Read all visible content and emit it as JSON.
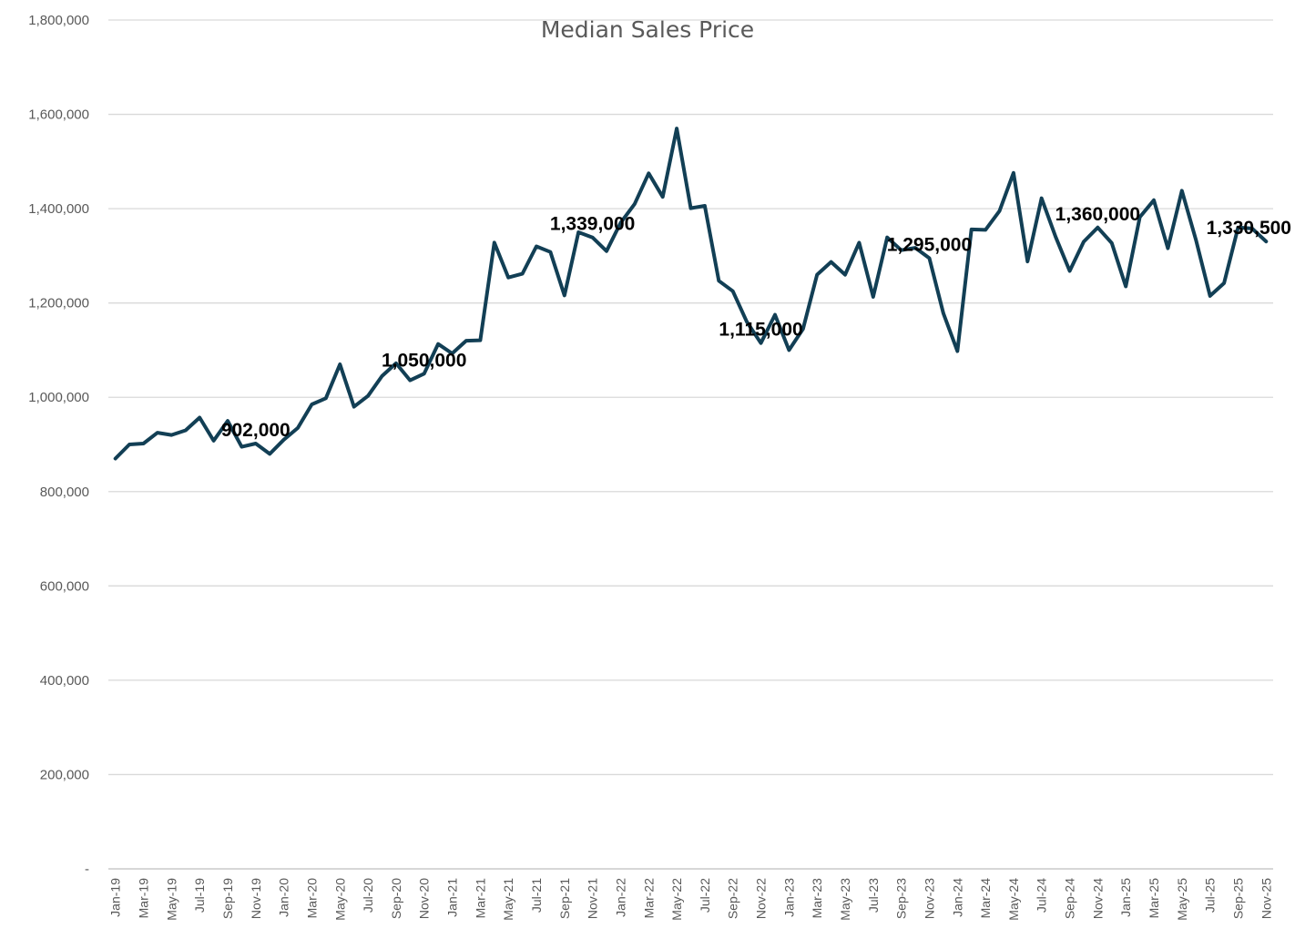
{
  "chart_data": {
    "type": "line",
    "title": "Median Sales Price",
    "xlabel": "",
    "ylabel": "",
    "ylim": [
      0,
      1800000
    ],
    "yticks": [
      0,
      200000,
      400000,
      600000,
      800000,
      1000000,
      1200000,
      1400000,
      1600000,
      1800000
    ],
    "ytick_labels": [
      "-",
      "200,000",
      "400,000",
      "600,000",
      "800,000",
      "1,000,000",
      "1,200,000",
      "1,400,000",
      "1,600,000",
      "1,800,000"
    ],
    "grid": "horizontal",
    "legend": "none",
    "line_color": "#123f55",
    "x": [
      "Jan-19",
      "Feb-19",
      "Mar-19",
      "Apr-19",
      "May-19",
      "Jun-19",
      "Jul-19",
      "Aug-19",
      "Sep-19",
      "Oct-19",
      "Nov-19",
      "Dec-19",
      "Jan-20",
      "Feb-20",
      "Mar-20",
      "Apr-20",
      "May-20",
      "Jun-20",
      "Jul-20",
      "Aug-20",
      "Sep-20",
      "Oct-20",
      "Nov-20",
      "Dec-20",
      "Jan-21",
      "Feb-21",
      "Mar-21",
      "Apr-21",
      "May-21",
      "Jun-21",
      "Jul-21",
      "Aug-21",
      "Sep-21",
      "Oct-21",
      "Nov-21",
      "Dec-21",
      "Jan-22",
      "Feb-22",
      "Mar-22",
      "Apr-22",
      "May-22",
      "Jun-22",
      "Jul-22",
      "Aug-22",
      "Sep-22",
      "Oct-22",
      "Nov-22",
      "Dec-22",
      "Jan-23",
      "Feb-23",
      "Mar-23",
      "Apr-23",
      "May-23",
      "Jun-23",
      "Jul-23",
      "Aug-23",
      "Sep-23",
      "Oct-23",
      "Nov-23",
      "Dec-23",
      "Jan-24",
      "Feb-24",
      "Mar-24",
      "Apr-24",
      "May-24",
      "Jun-24",
      "Jul-24",
      "Aug-24",
      "Sep-24",
      "Oct-24",
      "Nov-24",
      "Dec-24",
      "Jan-25",
      "Feb-25",
      "Mar-25",
      "Apr-25",
      "May-25",
      "Jun-25",
      "Jul-25",
      "Aug-25",
      "Sep-25",
      "Oct-25",
      "Nov-25"
    ],
    "x_tick_labels": [
      "Jan-19",
      "Mar-19",
      "May-19",
      "Jul-19",
      "Sep-19",
      "Nov-19",
      "Jan-20",
      "Mar-20",
      "May-20",
      "Jul-20",
      "Sep-20",
      "Nov-20",
      "Jan-21",
      "Mar-21",
      "May-21",
      "Jul-21",
      "Sep-21",
      "Nov-21",
      "Jan-22",
      "Mar-22",
      "May-22",
      "Jul-22",
      "Sep-22",
      "Nov-22",
      "Jan-23",
      "Mar-23",
      "May-23",
      "Jul-23",
      "Sep-23",
      "Nov-23",
      "Jan-24",
      "Mar-24",
      "May-24",
      "Jul-24",
      "Sep-24",
      "Nov-24",
      "Jan-25",
      "Mar-25",
      "May-25",
      "Jul-25",
      "Sep-25",
      "Nov-25"
    ],
    "series": [
      {
        "values": [
          870000,
          900000,
          902000,
          925000,
          920000,
          930000,
          957000,
          908000,
          950000,
          895000,
          902000,
          880000,
          910000,
          935000,
          985000,
          998000,
          1070000,
          980000,
          1003000,
          1045000,
          1072000,
          1036000,
          1050000,
          1113000,
          1093000,
          1120000,
          1121000,
          1328000,
          1254000,
          1262000,
          1320000,
          1308000,
          1216000,
          1350000,
          1339000,
          1310000,
          1370000,
          1410000,
          1475000,
          1425000,
          1570000,
          1401000,
          1406000,
          1247000,
          1225000,
          1160000,
          1115000,
          1175000,
          1100000,
          1145000,
          1260000,
          1287000,
          1260000,
          1328000,
          1213000,
          1339000,
          1312000,
          1317000,
          1295000,
          1178000,
          1098000,
          1356000,
          1355000,
          1395000,
          1476000,
          1288000,
          1422000,
          1340000,
          1268000,
          1330000,
          1360000,
          1327000,
          1235000,
          1382000,
          1418000,
          1316000,
          1438000,
          1334000,
          1215000,
          1242000,
          1360000,
          1358000,
          1330500
        ]
      }
    ],
    "annotations": [
      {
        "index": 10,
        "text": "902,000"
      },
      {
        "index": 22,
        "text": "1,050,000"
      },
      {
        "index": 34,
        "text": "1,339,000"
      },
      {
        "index": 46,
        "text": "1,115,000"
      },
      {
        "index": 58,
        "text": "1,295,000"
      },
      {
        "index": 70,
        "text": "1,360,000"
      },
      {
        "index": 82,
        "text": "1,330,500"
      }
    ]
  }
}
